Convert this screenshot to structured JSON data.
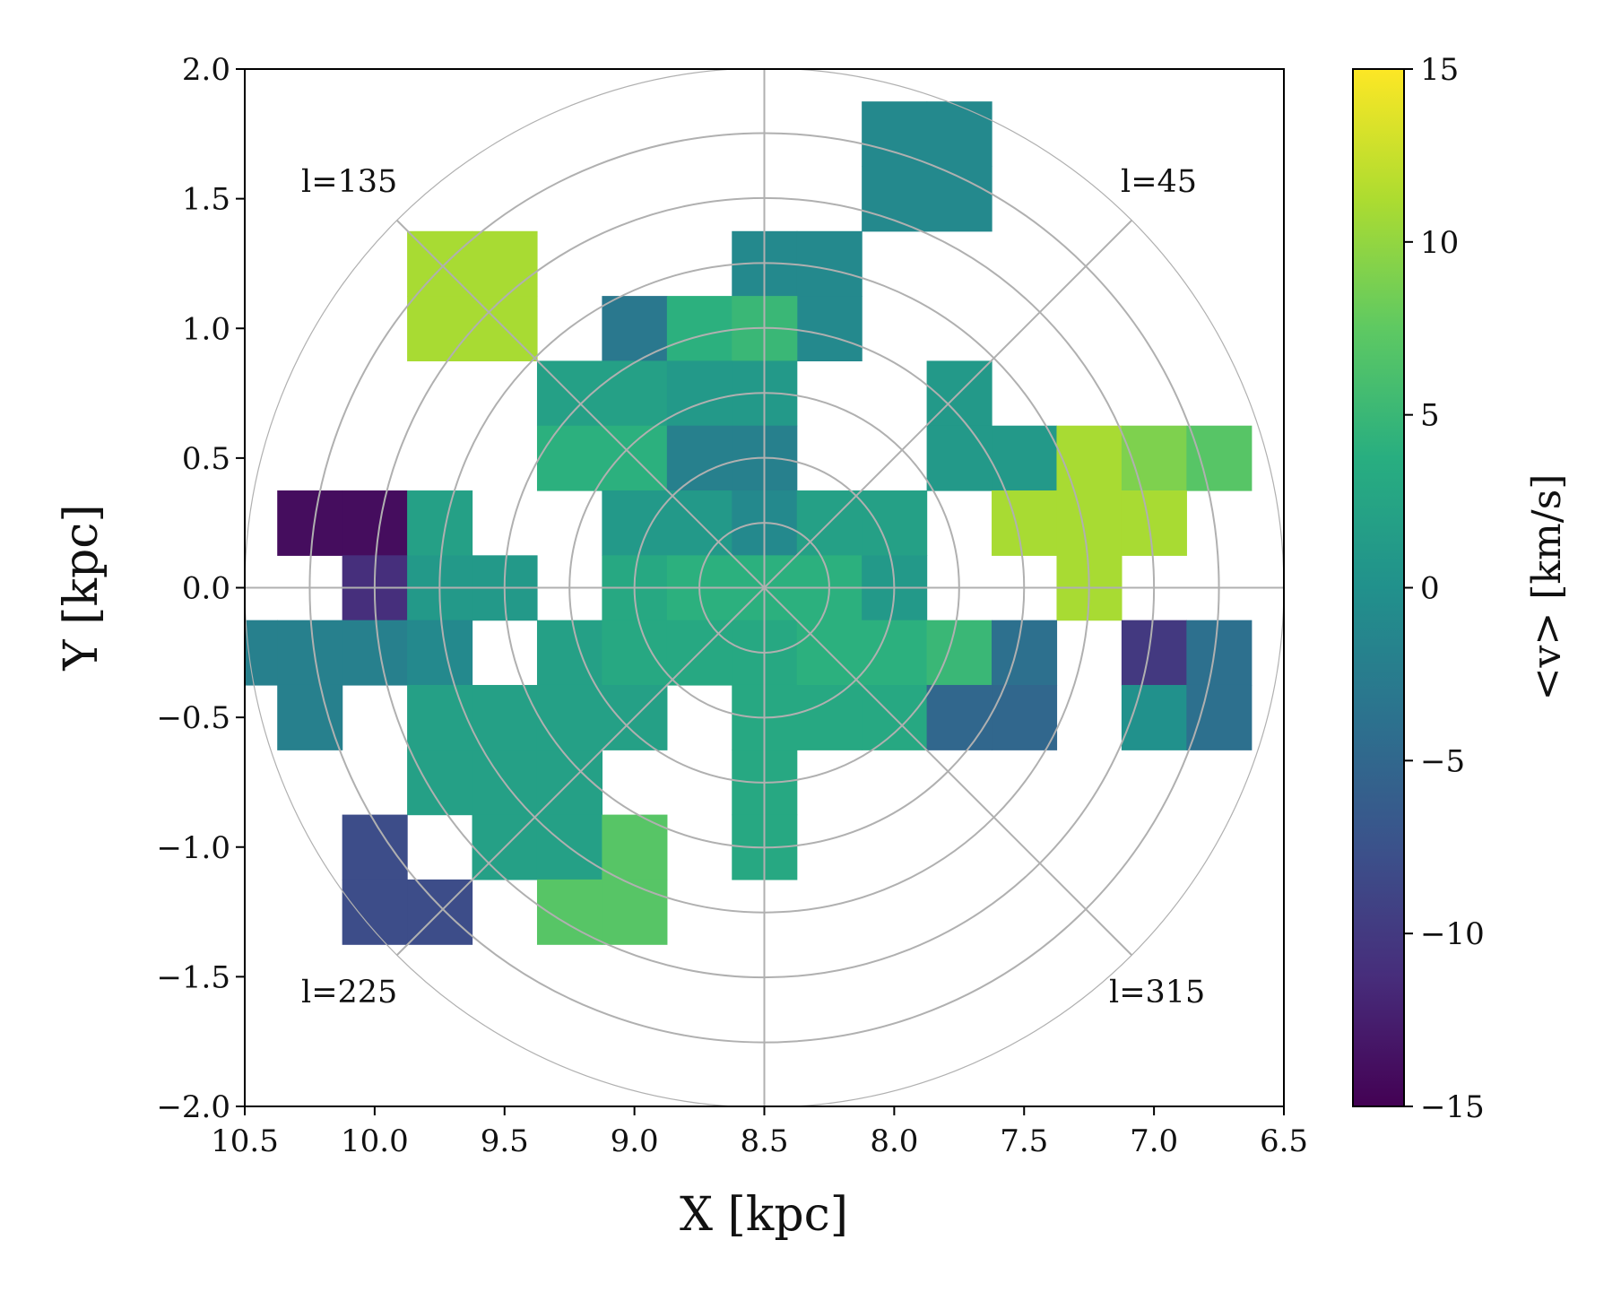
{
  "chart_data": {
    "type": "heatmap",
    "xlabel": "X [kpc]",
    "ylabel": "Y [kpc]",
    "xlim": [
      10.5,
      6.5
    ],
    "ylim": [
      -2.0,
      2.0
    ],
    "xticks": [
      10.5,
      10.0,
      9.5,
      9.0,
      8.5,
      8.0,
      7.5,
      7.0,
      6.5
    ],
    "yticks": [
      2.0,
      1.5,
      1.0,
      0.5,
      0.0,
      -0.5,
      -1.0,
      -1.5,
      -2.0
    ],
    "bin_size_kpc": 0.25,
    "colorbar": {
      "label": "<v> [km/s]",
      "range": [
        -15,
        15
      ],
      "ticks": [
        15,
        10,
        5,
        0,
        -5,
        -10,
        -15
      ],
      "colormap": "viridis"
    },
    "polar_grid": {
      "center": [
        8.5,
        0.0
      ],
      "radii": [
        0.25,
        0.5,
        0.75,
        1.0,
        1.25,
        1.5,
        1.75,
        2.0
      ],
      "spokes_deg": [
        0,
        45,
        90,
        135,
        180,
        225,
        270,
        315
      ]
    },
    "annotations": [
      "l=135",
      "l=45",
      "l=225",
      "l=315"
    ],
    "cells": [
      {
        "x": 7.75,
        "y": 1.75,
        "v": -1
      },
      {
        "x": 7.75,
        "y": 1.5,
        "v": -1
      },
      {
        "x": 8.0,
        "y": 1.75,
        "v": -1
      },
      {
        "x": 8.0,
        "y": 1.5,
        "v": -1
      },
      {
        "x": 9.75,
        "y": 1.25,
        "v": 11
      },
      {
        "x": 9.75,
        "y": 1.0,
        "v": 11
      },
      {
        "x": 9.5,
        "y": 1.25,
        "v": 11
      },
      {
        "x": 9.5,
        "y": 1.0,
        "v": 11
      },
      {
        "x": 8.5,
        "y": 1.25,
        "v": -1
      },
      {
        "x": 8.25,
        "y": 1.25,
        "v": -1
      },
      {
        "x": 8.25,
        "y": 1.0,
        "v": -1
      },
      {
        "x": 9.0,
        "y": 1.0,
        "v": -3
      },
      {
        "x": 8.75,
        "y": 1.0,
        "v": 4
      },
      {
        "x": 8.5,
        "y": 1.0,
        "v": 5
      },
      {
        "x": 9.25,
        "y": 0.75,
        "v": 2
      },
      {
        "x": 9.0,
        "y": 0.75,
        "v": 2
      },
      {
        "x": 8.75,
        "y": 0.75,
        "v": 1
      },
      {
        "x": 8.5,
        "y": 0.75,
        "v": 1
      },
      {
        "x": 7.75,
        "y": 0.75,
        "v": 1
      },
      {
        "x": 9.25,
        "y": 0.5,
        "v": 4
      },
      {
        "x": 9.0,
        "y": 0.5,
        "v": 4
      },
      {
        "x": 8.75,
        "y": 0.5,
        "v": -2
      },
      {
        "x": 8.5,
        "y": 0.5,
        "v": -2
      },
      {
        "x": 7.75,
        "y": 0.5,
        "v": 1
      },
      {
        "x": 7.5,
        "y": 0.5,
        "v": 1
      },
      {
        "x": 7.25,
        "y": 0.5,
        "v": 11
      },
      {
        "x": 7.0,
        "y": 0.5,
        "v": 9
      },
      {
        "x": 6.75,
        "y": 0.5,
        "v": 7
      },
      {
        "x": 10.25,
        "y": 0.25,
        "v": -14
      },
      {
        "x": 10.0,
        "y": 0.25,
        "v": -14
      },
      {
        "x": 9.75,
        "y": 0.25,
        "v": 2
      },
      {
        "x": 9.0,
        "y": 0.25,
        "v": 1
      },
      {
        "x": 8.75,
        "y": 0.25,
        "v": 1
      },
      {
        "x": 8.5,
        "y": 0.25,
        "v": -1
      },
      {
        "x": 8.25,
        "y": 0.25,
        "v": 2
      },
      {
        "x": 8.0,
        "y": 0.25,
        "v": 2
      },
      {
        "x": 7.5,
        "y": 0.25,
        "v": 11
      },
      {
        "x": 7.25,
        "y": 0.25,
        "v": 11
      },
      {
        "x": 7.0,
        "y": 0.25,
        "v": 11
      },
      {
        "x": 10.0,
        "y": 0.0,
        "v": -11
      },
      {
        "x": 9.75,
        "y": 0.0,
        "v": 1
      },
      {
        "x": 9.5,
        "y": 0.0,
        "v": 1
      },
      {
        "x": 9.0,
        "y": 0.0,
        "v": 3
      },
      {
        "x": 8.75,
        "y": 0.0,
        "v": 4
      },
      {
        "x": 8.5,
        "y": 0.0,
        "v": 4
      },
      {
        "x": 8.25,
        "y": 0.0,
        "v": 4
      },
      {
        "x": 8.0,
        "y": 0.0,
        "v": 1
      },
      {
        "x": 7.25,
        "y": 0.0,
        "v": 11
      },
      {
        "x": 10.5,
        "y": -0.25,
        "v": -2
      },
      {
        "x": 10.25,
        "y": -0.25,
        "v": -2
      },
      {
        "x": 10.0,
        "y": -0.25,
        "v": -2
      },
      {
        "x": 9.75,
        "y": -0.25,
        "v": -1
      },
      {
        "x": 9.25,
        "y": -0.25,
        "v": 2
      },
      {
        "x": 9.0,
        "y": -0.25,
        "v": 3
      },
      {
        "x": 8.75,
        "y": -0.25,
        "v": 3
      },
      {
        "x": 8.5,
        "y": -0.25,
        "v": 3
      },
      {
        "x": 8.25,
        "y": -0.25,
        "v": 4
      },
      {
        "x": 8.0,
        "y": -0.25,
        "v": 4
      },
      {
        "x": 7.75,
        "y": -0.25,
        "v": 5
      },
      {
        "x": 7.5,
        "y": -0.25,
        "v": -4
      },
      {
        "x": 7.0,
        "y": -0.25,
        "v": -10
      },
      {
        "x": 6.75,
        "y": -0.25,
        "v": -4
      },
      {
        "x": 10.25,
        "y": -0.5,
        "v": -2
      },
      {
        "x": 9.75,
        "y": -0.5,
        "v": 2
      },
      {
        "x": 9.5,
        "y": -0.5,
        "v": 2
      },
      {
        "x": 9.25,
        "y": -0.5,
        "v": 2
      },
      {
        "x": 9.0,
        "y": -0.5,
        "v": 2
      },
      {
        "x": 8.5,
        "y": -0.5,
        "v": 3
      },
      {
        "x": 8.25,
        "y": -0.5,
        "v": 3
      },
      {
        "x": 8.0,
        "y": -0.5,
        "v": 3
      },
      {
        "x": 7.75,
        "y": -0.5,
        "v": -5
      },
      {
        "x": 7.5,
        "y": -0.5,
        "v": -5
      },
      {
        "x": 7.0,
        "y": -0.5,
        "v": 0
      },
      {
        "x": 6.75,
        "y": -0.5,
        "v": -4
      },
      {
        "x": 9.75,
        "y": -0.75,
        "v": 2
      },
      {
        "x": 9.5,
        "y": -0.75,
        "v": 2
      },
      {
        "x": 9.25,
        "y": -0.75,
        "v": 2
      },
      {
        "x": 8.5,
        "y": -0.75,
        "v": 3
      },
      {
        "x": 10.0,
        "y": -1.0,
        "v": -8
      },
      {
        "x": 9.5,
        "y": -1.0,
        "v": 2
      },
      {
        "x": 9.25,
        "y": -1.0,
        "v": 2
      },
      {
        "x": 9.0,
        "y": -1.0,
        "v": 7
      },
      {
        "x": 8.5,
        "y": -1.0,
        "v": 3
      },
      {
        "x": 10.0,
        "y": -1.25,
        "v": -8
      },
      {
        "x": 9.75,
        "y": -1.25,
        "v": -8
      },
      {
        "x": 9.25,
        "y": -1.25,
        "v": 7
      },
      {
        "x": 9.0,
        "y": -1.25,
        "v": 7
      }
    ]
  }
}
